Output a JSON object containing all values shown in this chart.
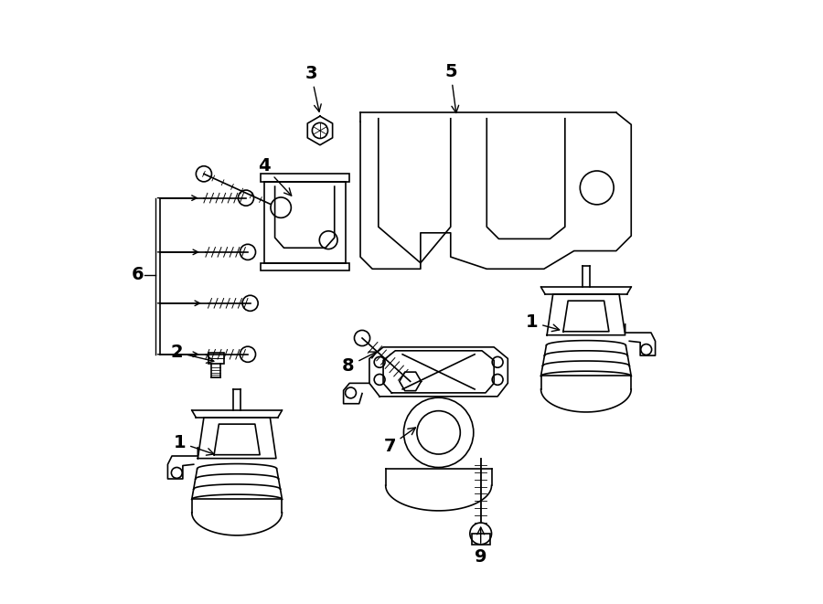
{
  "bg_color": "#ffffff",
  "line_color": "#000000",
  "line_width": 1.2,
  "fig_width": 9.0,
  "fig_height": 6.61,
  "dpi": 100,
  "label_fontsize": 14,
  "label_fontweight": "bold"
}
